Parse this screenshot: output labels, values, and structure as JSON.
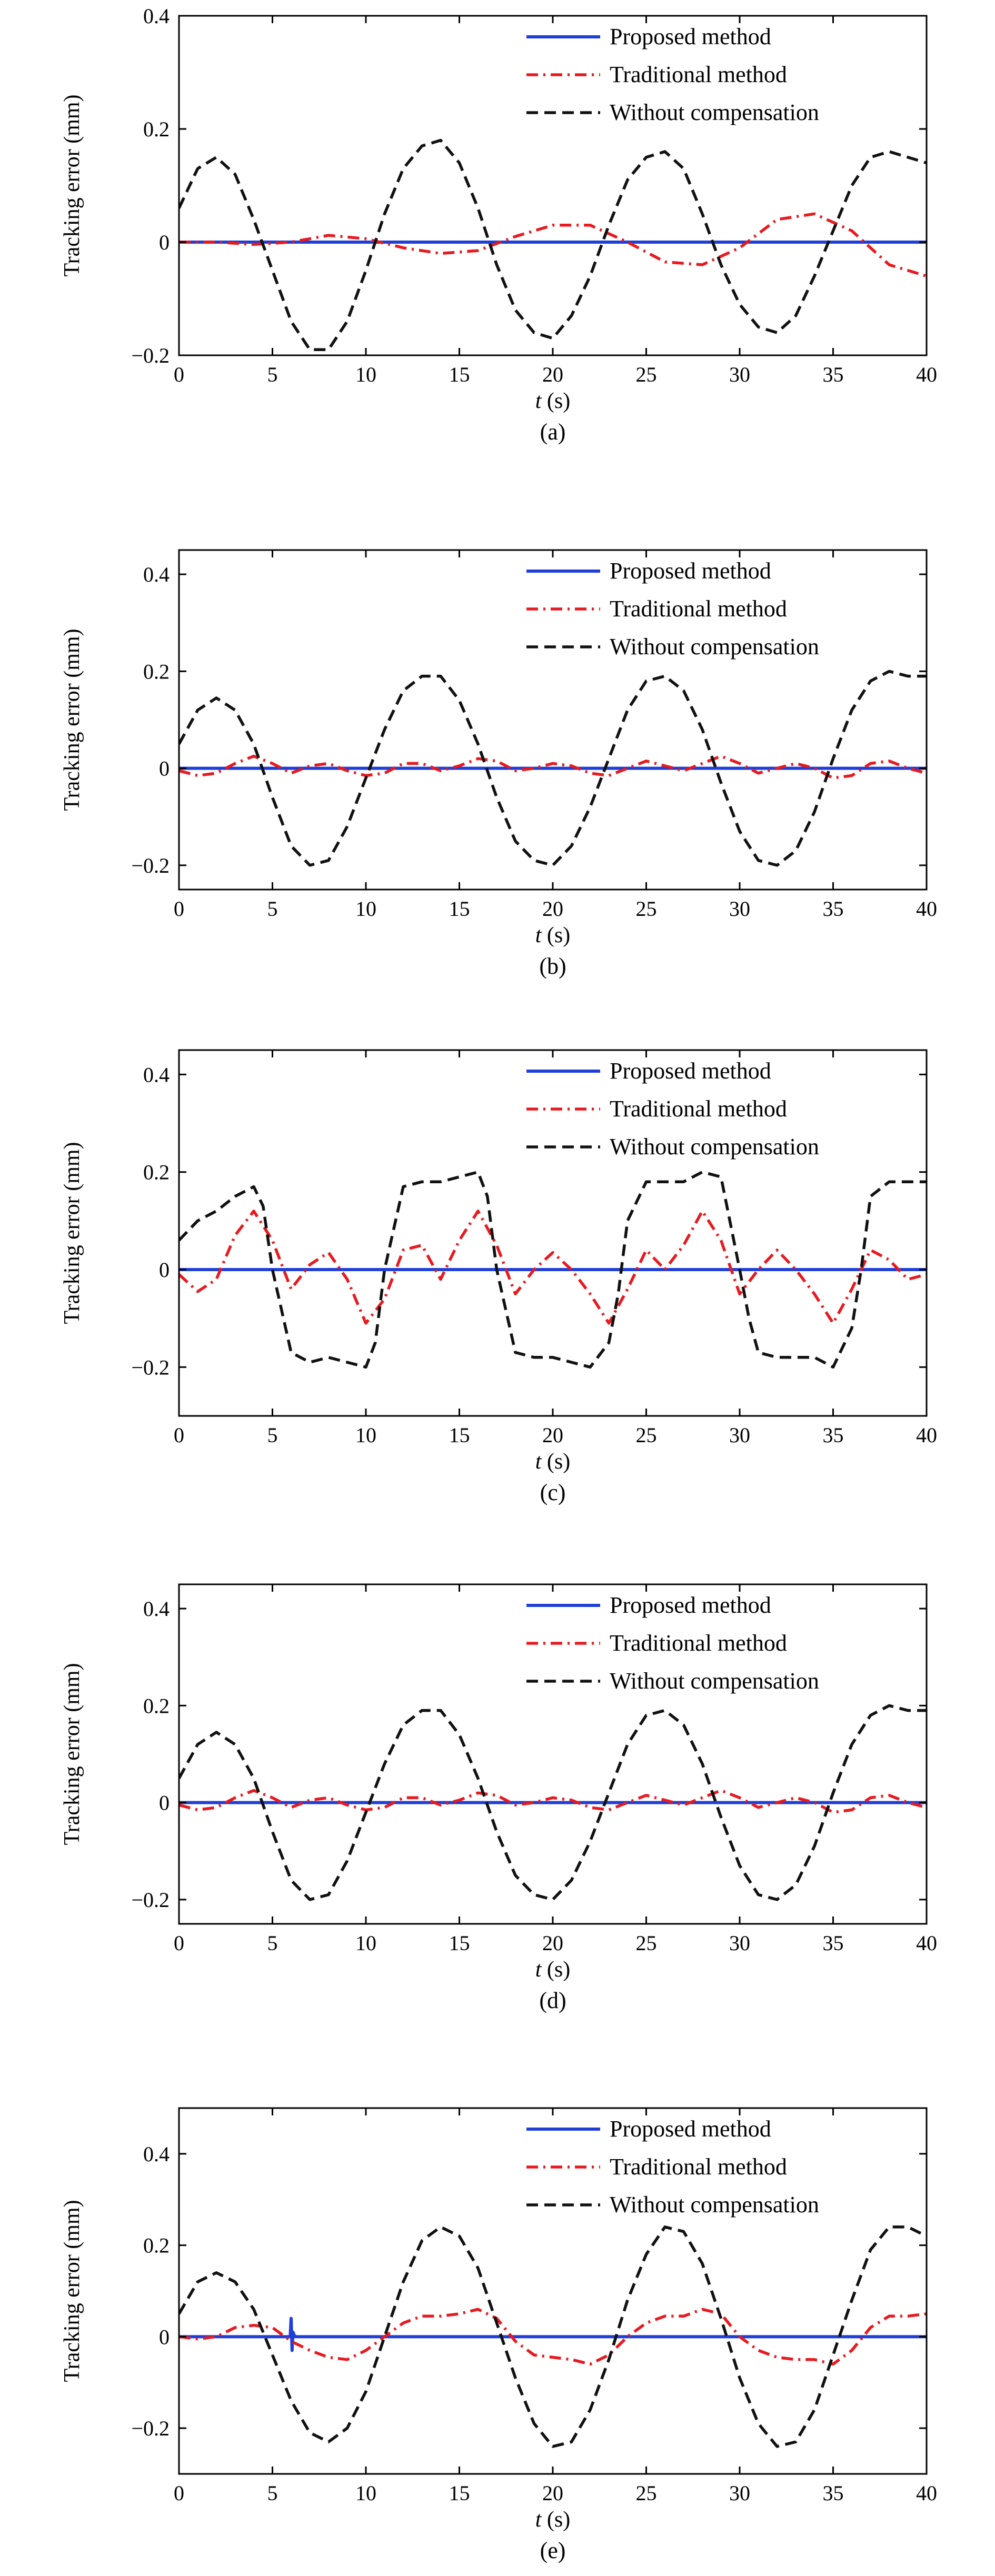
{
  "chart_data": [
    {
      "type": "line",
      "caption": "(a)",
      "xlabel_italic": "t",
      "xlabel_unit": " (s)",
      "ylabel": "Tracking error (mm)",
      "xlim": [
        0,
        40
      ],
      "ylim": [
        -0.2,
        0.4
      ],
      "xticks": [
        0,
        5,
        10,
        15,
        20,
        25,
        30,
        35,
        40
      ],
      "yticks": [
        -0.2,
        0,
        0.2,
        0.4
      ],
      "ytick_labels": [
        "−0.2",
        "0",
        "0.2",
        "0.4"
      ],
      "legend_position": "top-right",
      "series": [
        {
          "name": "Proposed method",
          "color": "#1f3fd6",
          "dash": "solid",
          "x": [
            0,
            40
          ],
          "y": [
            0,
            0
          ]
        },
        {
          "name": "Traditional method",
          "color": "#e8191f",
          "dash": "dashdot",
          "x": [
            0,
            2,
            4,
            6,
            8,
            10,
            12,
            14,
            16,
            18,
            20,
            22,
            24,
            26,
            28,
            30,
            32,
            34,
            36,
            38,
            40
          ],
          "y": [
            0,
            0.0,
            -0.004,
            0.0,
            0.012,
            0.006,
            -0.01,
            -0.02,
            -0.015,
            0.01,
            0.03,
            0.03,
            0.0,
            -0.035,
            -0.04,
            -0.01,
            0.04,
            0.05,
            0.02,
            -0.04,
            -0.06
          ]
        },
        {
          "name": "Without compensation",
          "color": "#111111",
          "dash": "dashed",
          "x": [
            0,
            1,
            2,
            3,
            4,
            5,
            6,
            7,
            8,
            9,
            10,
            11,
            12,
            13,
            14,
            15,
            16,
            17,
            18,
            19,
            20,
            21,
            22,
            23,
            24,
            25,
            26,
            27,
            28,
            29,
            30,
            31,
            32,
            33,
            34,
            35,
            36,
            37,
            38,
            39,
            40
          ],
          "y": [
            0.06,
            0.13,
            0.15,
            0.12,
            0.04,
            -0.05,
            -0.14,
            -0.19,
            -0.19,
            -0.14,
            -0.05,
            0.05,
            0.13,
            0.17,
            0.18,
            0.14,
            0.06,
            -0.04,
            -0.12,
            -0.16,
            -0.17,
            -0.13,
            -0.06,
            0.03,
            0.11,
            0.15,
            0.16,
            0.13,
            0.05,
            -0.04,
            -0.11,
            -0.15,
            -0.16,
            -0.13,
            -0.06,
            0.02,
            0.1,
            0.15,
            0.16,
            0.15,
            0.14
          ]
        }
      ]
    },
    {
      "type": "line",
      "caption": "(b)",
      "xlabel_italic": "t",
      "xlabel_unit": " (s)",
      "ylabel": "Tracking error (mm)",
      "xlim": [
        0,
        40
      ],
      "ylim": [
        -0.25,
        0.45
      ],
      "xticks": [
        0,
        5,
        10,
        15,
        20,
        25,
        30,
        35,
        40
      ],
      "yticks": [
        -0.2,
        0,
        0.2,
        0.4
      ],
      "ytick_labels": [
        "−0.2",
        "0",
        "0.2",
        "0.4"
      ],
      "legend_position": "top-right",
      "series": [
        {
          "name": "Proposed method",
          "color": "#1f3fd6",
          "dash": "solid",
          "x": [
            0,
            40
          ],
          "y": [
            0,
            0
          ]
        },
        {
          "name": "Traditional method",
          "color": "#e8191f",
          "dash": "dashdot",
          "x": [
            0,
            1,
            2,
            3,
            4,
            5,
            6,
            7,
            8,
            9,
            10,
            11,
            12,
            13,
            14,
            15,
            16,
            17,
            18,
            19,
            20,
            21,
            22,
            23,
            24,
            25,
            26,
            27,
            28,
            29,
            30,
            31,
            32,
            33,
            34,
            35,
            36,
            37,
            38,
            39,
            40
          ],
          "y": [
            -0.005,
            -0.015,
            -0.01,
            0.01,
            0.025,
            0.01,
            -0.01,
            0.005,
            0.01,
            -0.005,
            -0.015,
            -0.01,
            0.01,
            0.01,
            -0.005,
            0.005,
            0.02,
            0.015,
            -0.005,
            0.0,
            0.01,
            0.005,
            -0.01,
            -0.015,
            0.0,
            0.015,
            0.005,
            -0.005,
            0.01,
            0.025,
            0.01,
            -0.01,
            0.0,
            0.01,
            0.0,
            -0.02,
            -0.015,
            0.01,
            0.015,
            0.0,
            -0.01
          ]
        },
        {
          "name": "Without compensation",
          "color": "#111111",
          "dash": "dashed",
          "x": [
            0,
            1,
            2,
            3,
            4,
            5,
            6,
            7,
            8,
            9,
            10,
            11,
            12,
            13,
            14,
            15,
            16,
            17,
            18,
            19,
            20,
            21,
            22,
            23,
            24,
            25,
            26,
            27,
            28,
            29,
            30,
            31,
            32,
            33,
            34,
            35,
            36,
            37,
            38,
            39,
            40
          ],
          "y": [
            0.05,
            0.12,
            0.145,
            0.12,
            0.05,
            -0.06,
            -0.16,
            -0.2,
            -0.19,
            -0.12,
            -0.02,
            0.08,
            0.16,
            0.19,
            0.19,
            0.14,
            0.05,
            -0.06,
            -0.15,
            -0.19,
            -0.2,
            -0.16,
            -0.08,
            0.02,
            0.12,
            0.18,
            0.19,
            0.16,
            0.08,
            -0.03,
            -0.13,
            -0.19,
            -0.2,
            -0.17,
            -0.09,
            0.02,
            0.12,
            0.18,
            0.2,
            0.19,
            0.19
          ]
        }
      ]
    },
    {
      "type": "line",
      "caption": "(c)",
      "xlabel_italic": "t",
      "xlabel_unit": " (s)",
      "ylabel": "Tracking error (mm)",
      "xlim": [
        0,
        40
      ],
      "ylim": [
        -0.3,
        0.45
      ],
      "xticks": [
        0,
        5,
        10,
        15,
        20,
        25,
        30,
        35,
        40
      ],
      "yticks": [
        -0.2,
        0,
        0.2,
        0.4
      ],
      "ytick_labels": [
        "−0.2",
        "0",
        "0.2",
        "0.4"
      ],
      "legend_position": "top-right",
      "series": [
        {
          "name": "Proposed method",
          "color": "#1f3fd6",
          "dash": "solid",
          "x": [
            0,
            40
          ],
          "y": [
            0,
            0
          ]
        },
        {
          "name": "Traditional method",
          "color": "#e8191f",
          "dash": "dashdot",
          "x": [
            0,
            1,
            2,
            3,
            4,
            5,
            6,
            7,
            8,
            9,
            10,
            11,
            12,
            13,
            14,
            15,
            16,
            17,
            18,
            19,
            20,
            21,
            22,
            23,
            24,
            25,
            26,
            27,
            28,
            29,
            30,
            31,
            32,
            33,
            34,
            35,
            36,
            37,
            38,
            39,
            40
          ],
          "y": [
            -0.01,
            -0.045,
            -0.02,
            0.07,
            0.12,
            0.06,
            -0.04,
            0.01,
            0.035,
            -0.02,
            -0.11,
            -0.06,
            0.04,
            0.05,
            -0.02,
            0.06,
            0.12,
            0.05,
            -0.05,
            0.0,
            0.035,
            0.0,
            -0.05,
            -0.11,
            -0.04,
            0.04,
            0.0,
            0.05,
            0.12,
            0.06,
            -0.05,
            0.0,
            0.04,
            0.0,
            -0.05,
            -0.11,
            -0.04,
            0.04,
            0.02,
            -0.02,
            -0.01
          ]
        },
        {
          "name": "Without compensation",
          "color": "#111111",
          "dash": "dashed",
          "x": [
            0,
            1,
            2,
            3,
            4,
            4.5,
            5,
            6,
            7,
            8,
            9,
            10,
            10.5,
            11,
            12,
            13,
            14,
            15,
            16,
            16.5,
            17,
            18,
            19,
            20,
            21,
            22,
            23,
            23.5,
            24,
            25,
            26,
            27,
            28,
            29,
            30,
            30.5,
            31,
            32,
            33,
            34,
            35,
            36,
            36.5,
            37,
            38,
            39,
            40
          ],
          "y": [
            0.06,
            0.1,
            0.12,
            0.15,
            0.17,
            0.13,
            0.0,
            -0.17,
            -0.19,
            -0.18,
            -0.19,
            -0.2,
            -0.15,
            0.0,
            0.17,
            0.18,
            0.18,
            0.19,
            0.2,
            0.15,
            0.0,
            -0.17,
            -0.18,
            -0.18,
            -0.19,
            -0.2,
            -0.15,
            -0.05,
            0.1,
            0.18,
            0.18,
            0.18,
            0.2,
            0.19,
            0.0,
            -0.1,
            -0.17,
            -0.18,
            -0.18,
            -0.18,
            -0.2,
            -0.12,
            0.0,
            0.15,
            0.18,
            0.18,
            0.18
          ]
        }
      ]
    },
    {
      "type": "line",
      "caption": "(d)",
      "xlabel_italic": "t",
      "xlabel_unit": " (s)",
      "ylabel": "Tracking error (mm)",
      "xlim": [
        0,
        40
      ],
      "ylim": [
        -0.25,
        0.45
      ],
      "xticks": [
        0,
        5,
        10,
        15,
        20,
        25,
        30,
        35,
        40
      ],
      "yticks": [
        -0.2,
        0,
        0.2,
        0.4
      ],
      "ytick_labels": [
        "−0.2",
        "0",
        "0.2",
        "0.4"
      ],
      "legend_position": "top-right",
      "series": [
        {
          "name": "Proposed method",
          "color": "#1f3fd6",
          "dash": "solid",
          "x": [
            0,
            40
          ],
          "y": [
            0,
            0
          ]
        },
        {
          "name": "Traditional method",
          "color": "#e8191f",
          "dash": "dashdot",
          "x": [
            0,
            1,
            2,
            3,
            4,
            5,
            6,
            7,
            8,
            9,
            10,
            11,
            12,
            13,
            14,
            15,
            16,
            17,
            18,
            19,
            20,
            21,
            22,
            23,
            24,
            25,
            26,
            27,
            28,
            29,
            30,
            31,
            32,
            33,
            34,
            35,
            36,
            37,
            38,
            39,
            40
          ],
          "y": [
            -0.005,
            -0.015,
            -0.01,
            0.01,
            0.025,
            0.01,
            -0.01,
            0.005,
            0.01,
            -0.005,
            -0.015,
            -0.01,
            0.01,
            0.01,
            -0.005,
            0.005,
            0.02,
            0.015,
            -0.005,
            0.0,
            0.01,
            0.005,
            -0.01,
            -0.015,
            0.0,
            0.015,
            0.005,
            -0.005,
            0.01,
            0.025,
            0.01,
            -0.01,
            0.0,
            0.01,
            0.0,
            -0.02,
            -0.015,
            0.01,
            0.015,
            0.0,
            -0.01
          ]
        },
        {
          "name": "Without compensation",
          "color": "#111111",
          "dash": "dashed",
          "x": [
            0,
            1,
            2,
            3,
            4,
            5,
            6,
            7,
            8,
            9,
            10,
            11,
            12,
            13,
            14,
            15,
            16,
            17,
            18,
            19,
            20,
            21,
            22,
            23,
            24,
            25,
            26,
            27,
            28,
            29,
            30,
            31,
            32,
            33,
            34,
            35,
            36,
            37,
            38,
            39,
            40
          ],
          "y": [
            0.05,
            0.12,
            0.145,
            0.12,
            0.05,
            -0.06,
            -0.16,
            -0.2,
            -0.19,
            -0.12,
            -0.02,
            0.08,
            0.16,
            0.19,
            0.19,
            0.14,
            0.05,
            -0.06,
            -0.15,
            -0.19,
            -0.2,
            -0.16,
            -0.08,
            0.02,
            0.12,
            0.18,
            0.19,
            0.16,
            0.08,
            -0.03,
            -0.13,
            -0.19,
            -0.2,
            -0.17,
            -0.09,
            0.02,
            0.12,
            0.18,
            0.2,
            0.19,
            0.19
          ]
        }
      ]
    },
    {
      "type": "line",
      "caption": "(e)",
      "xlabel_italic": "t",
      "xlabel_unit": " (s)",
      "ylabel": "Tracking error (mm)",
      "xlim": [
        0,
        40
      ],
      "ylim": [
        -0.3,
        0.5
      ],
      "xticks": [
        0,
        5,
        10,
        15,
        20,
        25,
        30,
        35,
        40
      ],
      "yticks": [
        -0.2,
        0,
        0.2,
        0.4
      ],
      "ytick_labels": [
        "−0.2",
        "0",
        "0.2",
        "0.4"
      ],
      "legend_position": "top-right",
      "series": [
        {
          "name": "Proposed method",
          "color": "#1f3fd6",
          "dash": "solid",
          "x": [
            0,
            5.95,
            6.0,
            6.05,
            6.1,
            6.2,
            40
          ],
          "y": [
            0,
            0,
            0.04,
            -0.03,
            0.01,
            0,
            0
          ]
        },
        {
          "name": "Traditional method",
          "color": "#e8191f",
          "dash": "dashdot",
          "x": [
            0,
            1,
            2,
            3,
            4,
            5,
            6,
            7,
            8,
            9,
            10,
            11,
            12,
            13,
            14,
            15,
            16,
            17,
            18,
            19,
            20,
            21,
            22,
            23,
            24,
            25,
            26,
            27,
            28,
            29,
            30,
            31,
            32,
            33,
            34,
            35,
            36,
            37,
            38,
            39,
            40
          ],
          "y": [
            0.0,
            -0.005,
            0.0,
            0.02,
            0.025,
            0.02,
            -0.01,
            -0.03,
            -0.045,
            -0.05,
            -0.03,
            0.0,
            0.03,
            0.045,
            0.045,
            0.05,
            0.06,
            0.04,
            -0.01,
            -0.04,
            -0.045,
            -0.05,
            -0.06,
            -0.04,
            0.0,
            0.03,
            0.045,
            0.045,
            0.06,
            0.05,
            0.0,
            -0.03,
            -0.045,
            -0.05,
            -0.05,
            -0.06,
            -0.03,
            0.02,
            0.045,
            0.045,
            0.05
          ]
        },
        {
          "name": "Without compensation",
          "color": "#111111",
          "dash": "dashed",
          "x": [
            0,
            1,
            2,
            3,
            4,
            5,
            6,
            7,
            8,
            9,
            10,
            11,
            12,
            13,
            14,
            15,
            16,
            17,
            18,
            19,
            20,
            21,
            22,
            23,
            24,
            25,
            26,
            27,
            28,
            29,
            30,
            31,
            32,
            33,
            34,
            35,
            36,
            37,
            38,
            39,
            40
          ],
          "y": [
            0.05,
            0.12,
            0.14,
            0.12,
            0.06,
            -0.04,
            -0.14,
            -0.21,
            -0.23,
            -0.2,
            -0.12,
            0.0,
            0.12,
            0.21,
            0.24,
            0.22,
            0.15,
            0.03,
            -0.09,
            -0.19,
            -0.24,
            -0.23,
            -0.16,
            -0.05,
            0.08,
            0.18,
            0.24,
            0.23,
            0.16,
            0.04,
            -0.09,
            -0.19,
            -0.24,
            -0.23,
            -0.16,
            -0.04,
            0.08,
            0.19,
            0.24,
            0.24,
            0.22
          ]
        }
      ]
    }
  ]
}
